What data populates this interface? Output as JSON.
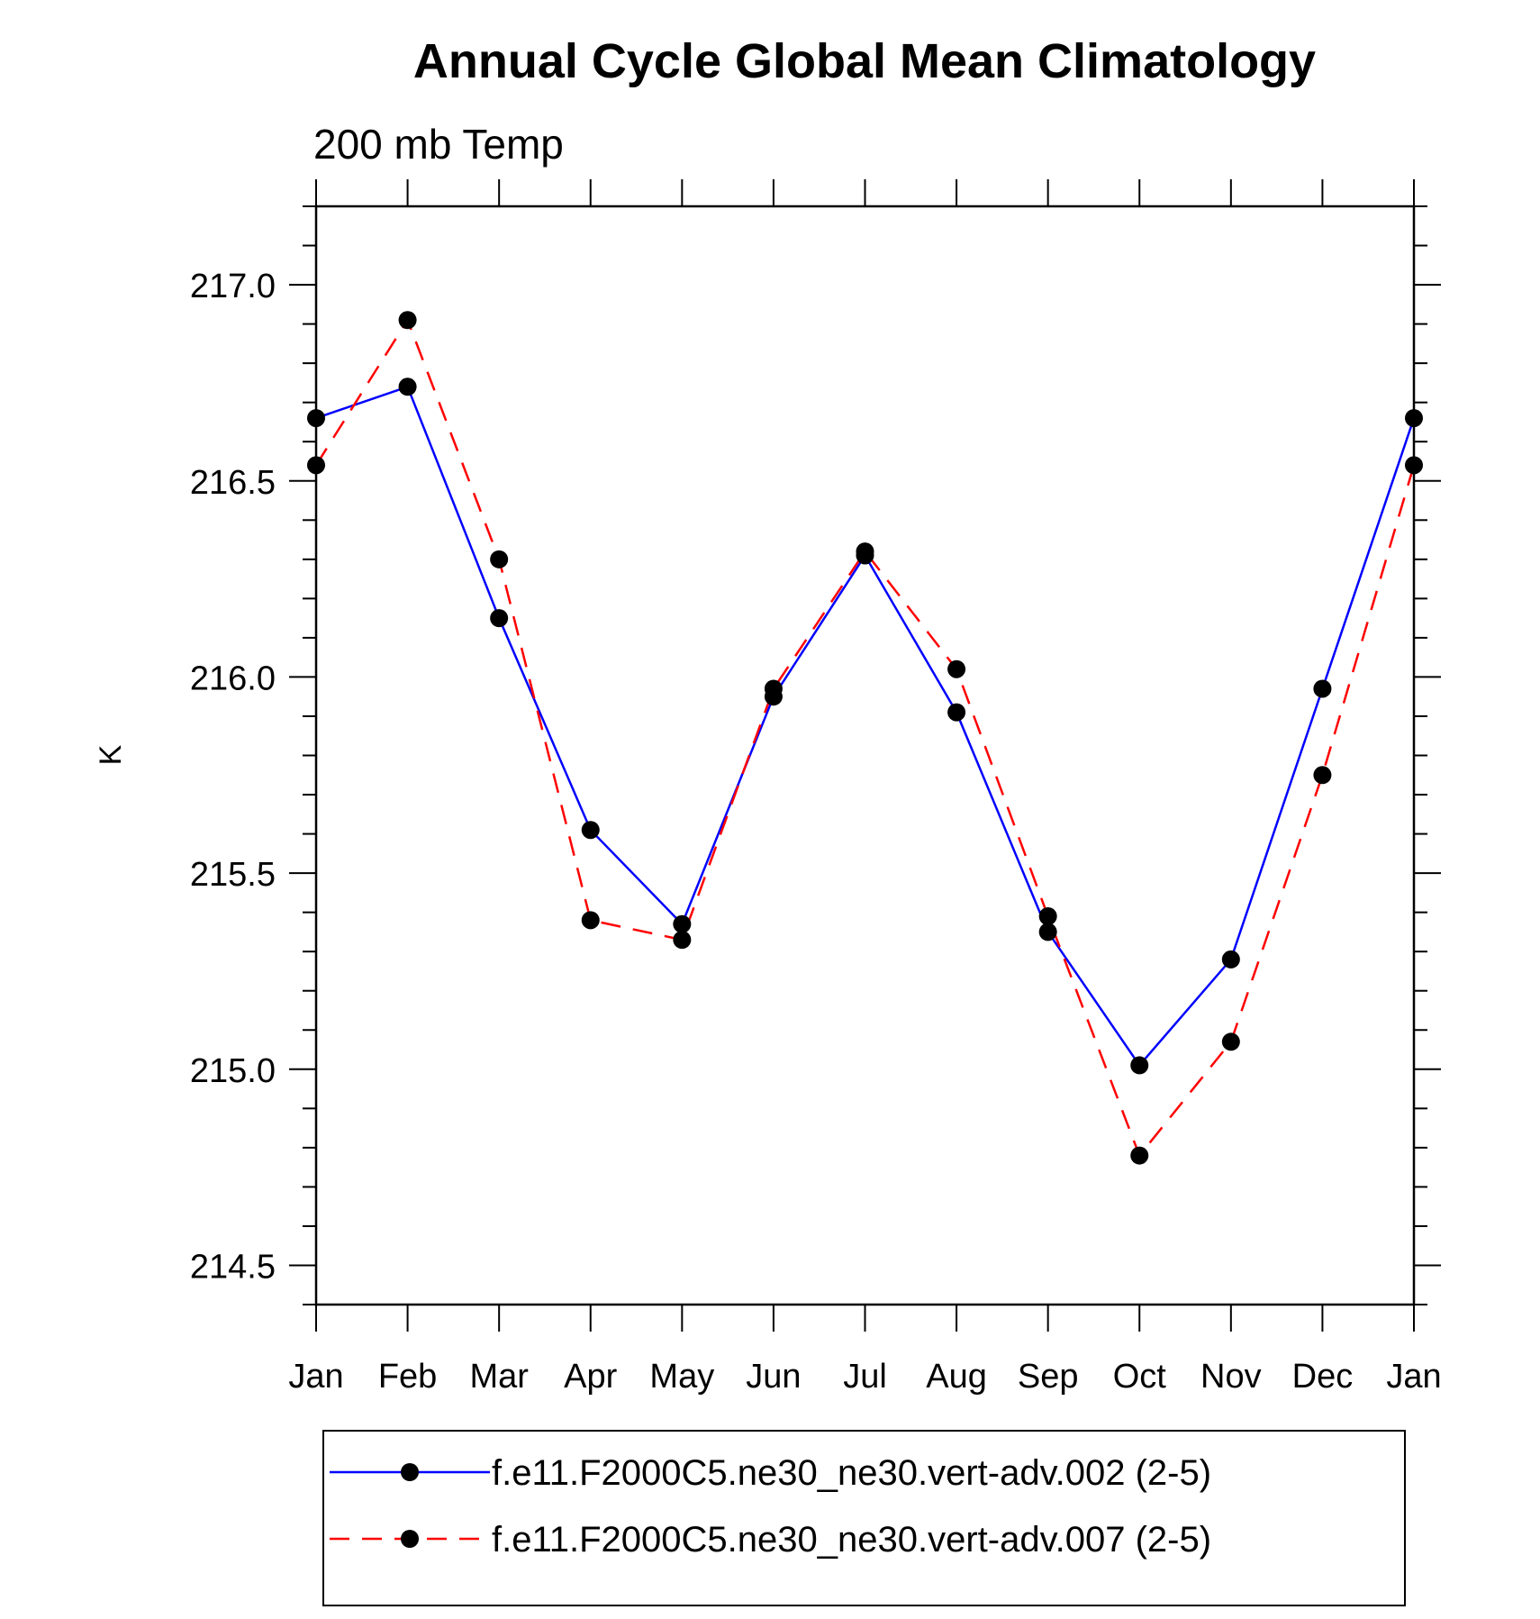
{
  "chart_data": {
    "type": "line",
    "title": "Annual Cycle Global Mean Climatology",
    "subtitle": "200 mb Temp",
    "xlabel": "",
    "ylabel": "K",
    "categories": [
      "Jan",
      "Feb",
      "Mar",
      "Apr",
      "May",
      "Jun",
      "Jul",
      "Aug",
      "Sep",
      "Oct",
      "Nov",
      "Dec",
      "Jan"
    ],
    "ylim": [
      214.4,
      217.2
    ],
    "yticks": [
      214.5,
      215.0,
      215.5,
      216.0,
      216.5,
      217.0
    ],
    "ytick_labels": [
      "214.5",
      "215.0",
      "215.5",
      "216.0",
      "216.5",
      "217.0"
    ],
    "series": [
      {
        "name": "f.e11.F2000C5.ne30_ne30.vert-adv.002 (2-5)",
        "color": "#0000ff",
        "dash": "solid",
        "values": [
          216.66,
          216.74,
          216.15,
          215.61,
          215.37,
          215.95,
          216.31,
          215.91,
          215.35,
          215.01,
          215.28,
          215.97,
          216.66
        ]
      },
      {
        "name": "f.e11.F2000C5.ne30_ne30.vert-adv.007 (2-5)",
        "color": "#ff0000",
        "dash": "dashed",
        "values": [
          216.54,
          216.91,
          216.3,
          215.38,
          215.33,
          215.97,
          216.32,
          216.02,
          215.39,
          214.78,
          215.07,
          215.75,
          216.54
        ]
      }
    ],
    "marker_color": "#000000",
    "legend_position": "bottom"
  }
}
